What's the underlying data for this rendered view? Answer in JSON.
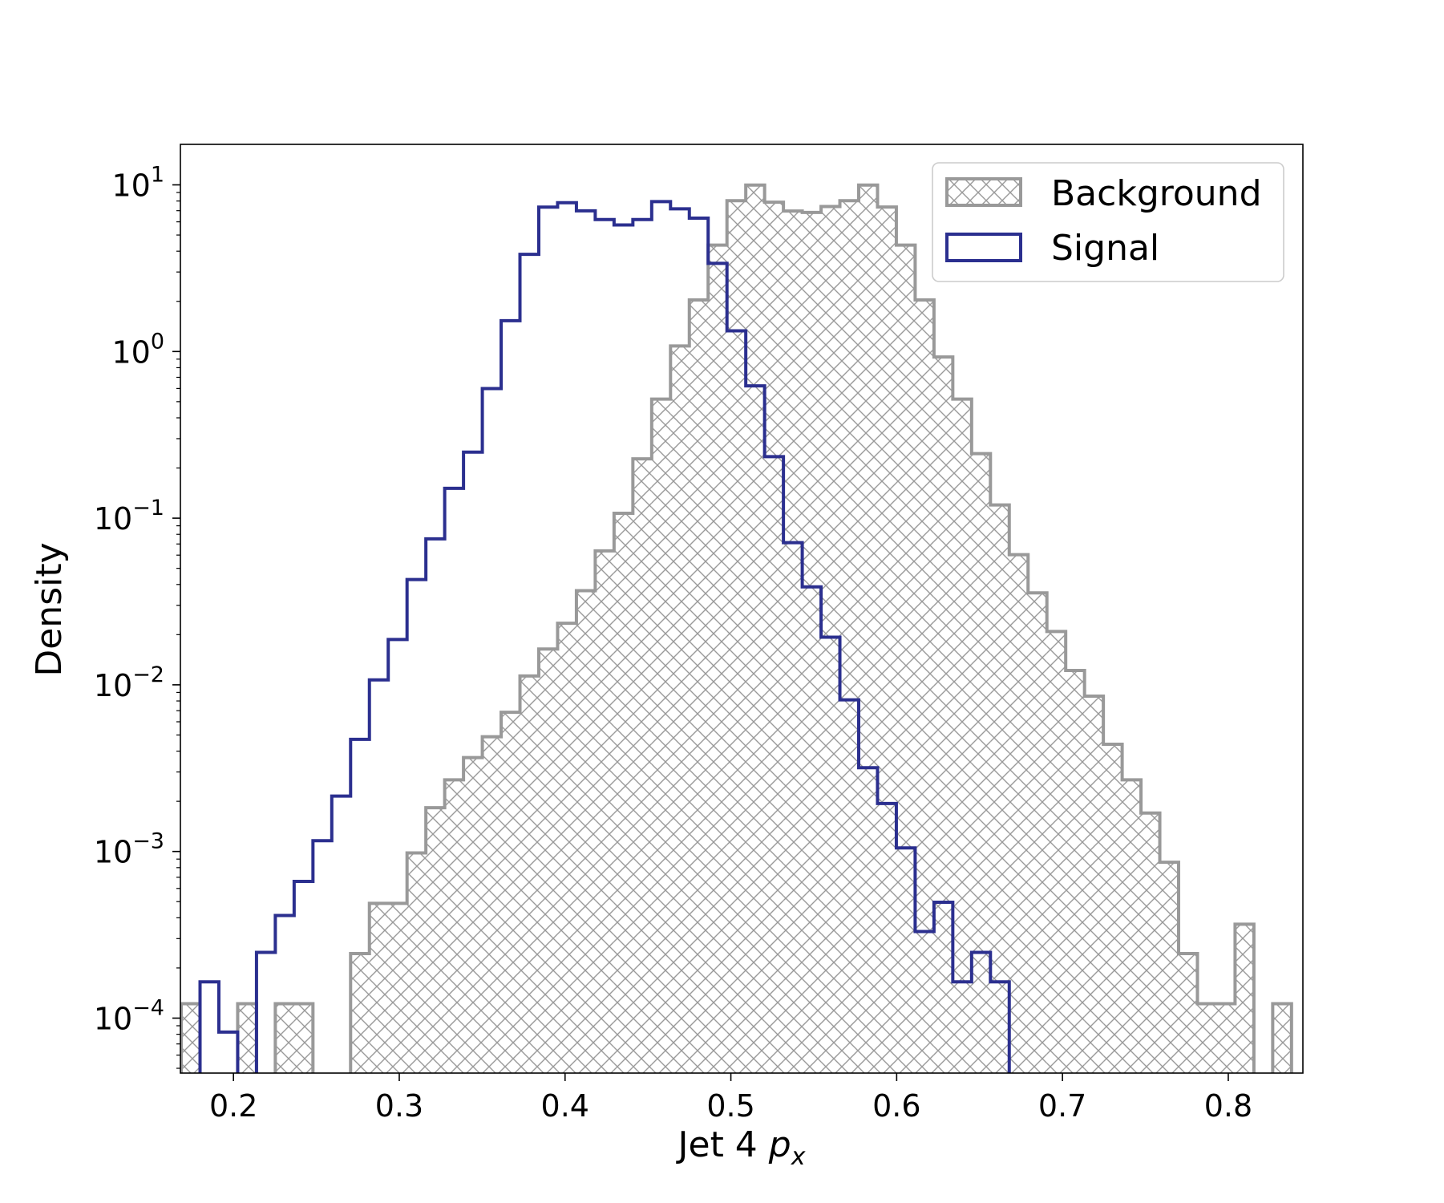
{
  "chart_data": {
    "type": "histogram",
    "xlabel": "Jet 4 ",
    "xlabel_math": "p",
    "xlabel_sub": "x",
    "ylabel": "Density",
    "y_scale": "log",
    "xlim": [
      0.168,
      0.845
    ],
    "ylim": [
      4.68e-05,
      17.5
    ],
    "x_ticks": [
      0.2,
      0.3,
      0.4,
      0.5,
      0.6,
      0.7,
      0.8
    ],
    "x_tick_labels": [
      "0.2",
      "0.3",
      "0.4",
      "0.5",
      "0.6",
      "0.7",
      "0.8"
    ],
    "y_ticks": [
      {
        "value": 10,
        "base": "10",
        "exp": "1"
      },
      {
        "value": 1,
        "base": "10",
        "exp": "0"
      },
      {
        "value": 0.1,
        "base": "10",
        "exp": "−1"
      },
      {
        "value": 0.01,
        "base": "10",
        "exp": "−2"
      },
      {
        "value": 0.001,
        "base": "10",
        "exp": "−3"
      },
      {
        "value": 0.0001,
        "base": "10",
        "exp": "−4"
      }
    ],
    "legend": {
      "position": "upper right",
      "entries": [
        {
          "label": "Background",
          "style": "hatched"
        },
        {
          "label": "Signal",
          "style": "outline"
        }
      ]
    },
    "series": [
      {
        "name": "Background",
        "color": "#999999",
        "hatch": "crosshatch",
        "x_start": 0.1685,
        "bin_width": 0.01135,
        "values": [
          0.000122,
          0,
          0,
          0.000122,
          0,
          0.000122,
          0.000122,
          0,
          0,
          0.000244,
          0.000488,
          0.000488,
          0.00098,
          0.00183,
          0.00269,
          0.00366,
          0.00488,
          0.00684,
          0.0113,
          0.0164,
          0.0234,
          0.0367,
          0.0636,
          0.107,
          0.227,
          0.518,
          1.08,
          2.04,
          4.35,
          8.04,
          9.97,
          7.87,
          6.97,
          6.83,
          7.41,
          8.04,
          9.97,
          7.36,
          4.35,
          2.04,
          0.927,
          0.518,
          0.244,
          0.12,
          0.0604,
          0.0356,
          0.0209,
          0.0122,
          0.00855,
          0.0044,
          0.00269,
          0.0017,
          0.000862,
          0.000244,
          0.000122,
          0.000122,
          0.000366,
          0,
          0.000122,
          0,
          0.000122,
          0.000122
        ]
      },
      {
        "name": "Signal",
        "color": "#2b2f8f",
        "x_start": 0.1685,
        "bin_width": 0.01135,
        "values": [
          0,
          0.000165,
          8.25e-05,
          0,
          0.000248,
          0.000413,
          0.000661,
          0.00116,
          0.00215,
          0.00471,
          0.0107,
          0.0187,
          0.0428,
          0.0751,
          0.151,
          0.249,
          0.599,
          1.53,
          3.83,
          7.35,
          7.81,
          6.99,
          6.19,
          5.75,
          6.19,
          7.94,
          7.18,
          6.31,
          3.38,
          1.33,
          0.622,
          0.234,
          0.0713,
          0.0387,
          0.0193,
          0.00812,
          0.00318,
          0.00194,
          0.00105,
          0.000331,
          0.000496,
          0.000165,
          0.000248,
          0.000165
        ]
      }
    ]
  }
}
